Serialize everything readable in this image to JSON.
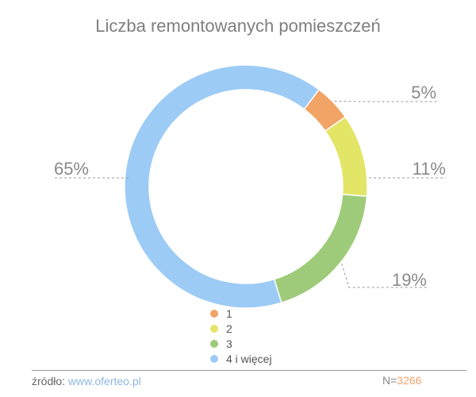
{
  "chart_data": {
    "type": "pie",
    "title": "Liczba remontowanych pomieszczeń",
    "slices": [
      {
        "label": "1",
        "value": 5,
        "display": "5%",
        "color": "#f1a466"
      },
      {
        "label": "2",
        "value": 11,
        "display": "11%",
        "color": "#e3e567"
      },
      {
        "label": "3",
        "value": 19,
        "display": "19%",
        "color": "#9ecb79"
      },
      {
        "label": "4 i więcej",
        "value": 65,
        "display": "65%",
        "color": "#9ccbf5"
      }
    ],
    "legend_position": "bottom-center"
  },
  "footer": {
    "source_label": "źródło:",
    "source_link": "www.oferteo.pl",
    "n_label": "N=",
    "n_value": "3266"
  }
}
